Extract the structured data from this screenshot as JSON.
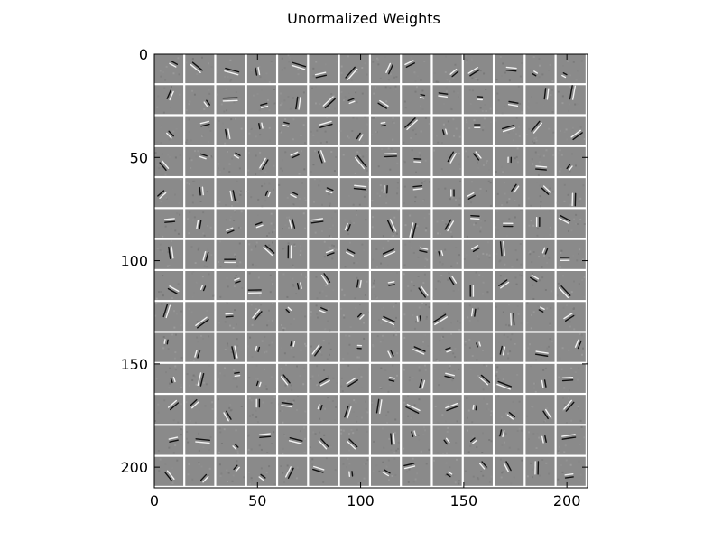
{
  "chart_data": {
    "type": "heatmap",
    "title": "Unormalized Weights",
    "xlabel": "",
    "ylabel": "",
    "x_ticks": [
      0,
      50,
      100,
      150,
      200
    ],
    "y_ticks": [
      0,
      50,
      100,
      150,
      200
    ],
    "xlim": [
      0,
      210
    ],
    "ylim": [
      210,
      0
    ],
    "grid": false,
    "tiles": {
      "rows": 14,
      "cols": 14
    },
    "colormap": "gray",
    "colors": {
      "background": "#ffffff",
      "tile_base": "#8a8a8a",
      "separator": "#ffffff",
      "dark": "#111111",
      "light": "#f2f2f2"
    }
  }
}
